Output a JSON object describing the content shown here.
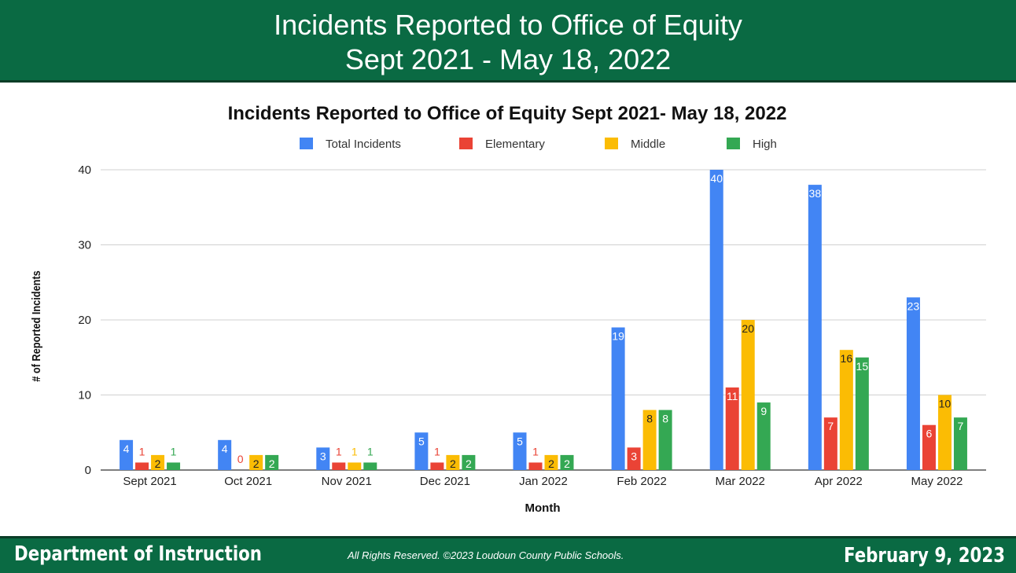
{
  "header": {
    "title_line1": "Incidents Reported to Office of Equity",
    "title_line2": "Sept 2021 - May 18, 2022"
  },
  "footer": {
    "department": "Department of Instruction",
    "rights": "All Rights Reserved.  ©2023 Loudoun County Public Schools.",
    "date": "February 9, 2023"
  },
  "chart_data": {
    "type": "bar",
    "title": "Incidents Reported to Office of Equity Sept 2021- May 18, 2022",
    "xlabel": "Month",
    "ylabel": "# of Reported Incidents",
    "ylim": [
      0,
      40
    ],
    "yticks": [
      0,
      10,
      20,
      30,
      40
    ],
    "grid": true,
    "legend_position": "top",
    "categories": [
      "Sept 2021",
      "Oct 2021",
      "Nov 2021",
      "Dec 2021",
      "Jan 2022",
      "Feb 2022",
      "Mar 2022",
      "Apr 2022",
      "May 2022"
    ],
    "series": [
      {
        "name": "Total Incidents",
        "color": "#4285f4",
        "values": [
          4,
          4,
          3,
          5,
          5,
          19,
          40,
          38,
          23
        ]
      },
      {
        "name": "Elementary",
        "color": "#ea4335",
        "values": [
          1,
          0,
          1,
          1,
          1,
          3,
          11,
          7,
          6
        ]
      },
      {
        "name": "Middle",
        "color": "#fbbc04",
        "values": [
          2,
          2,
          1,
          2,
          2,
          8,
          20,
          16,
          10
        ]
      },
      {
        "name": "High",
        "color": "#34a853",
        "values": [
          1,
          2,
          1,
          2,
          2,
          8,
          9,
          15,
          7
        ]
      }
    ]
  }
}
